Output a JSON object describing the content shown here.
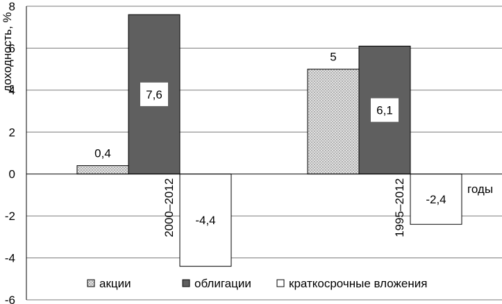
{
  "chart_data": {
    "type": "bar",
    "categories": [
      "2000–2012",
      "1995–2012"
    ],
    "series": [
      {
        "name": "акции",
        "values": [
          0.4,
          5
        ],
        "labels": [
          "0,4",
          "5"
        ],
        "color": "#d4d4d4",
        "pattern": "dotted"
      },
      {
        "name": "облигации",
        "values": [
          7.6,
          6.1
        ],
        "labels": [
          "7,6",
          "6,1"
        ],
        "color": "#5f5f5f"
      },
      {
        "name": "краткосрочные вложения",
        "values": [
          -4.4,
          -2.4
        ],
        "labels": [
          "-4,4",
          "-2,4"
        ],
        "color": "#ffffff"
      }
    ],
    "ylabel": "доходность, %",
    "xlabel": "годы",
    "ylim": [
      -6,
      8
    ],
    "yticks": [
      -6,
      -4,
      -2,
      0,
      2,
      4,
      6,
      8
    ],
    "ytick_labels": [
      "-6",
      "-4",
      "-2",
      "0",
      "2",
      "4",
      "6",
      "8"
    ],
    "grid": true,
    "legend_position": "bottom"
  }
}
